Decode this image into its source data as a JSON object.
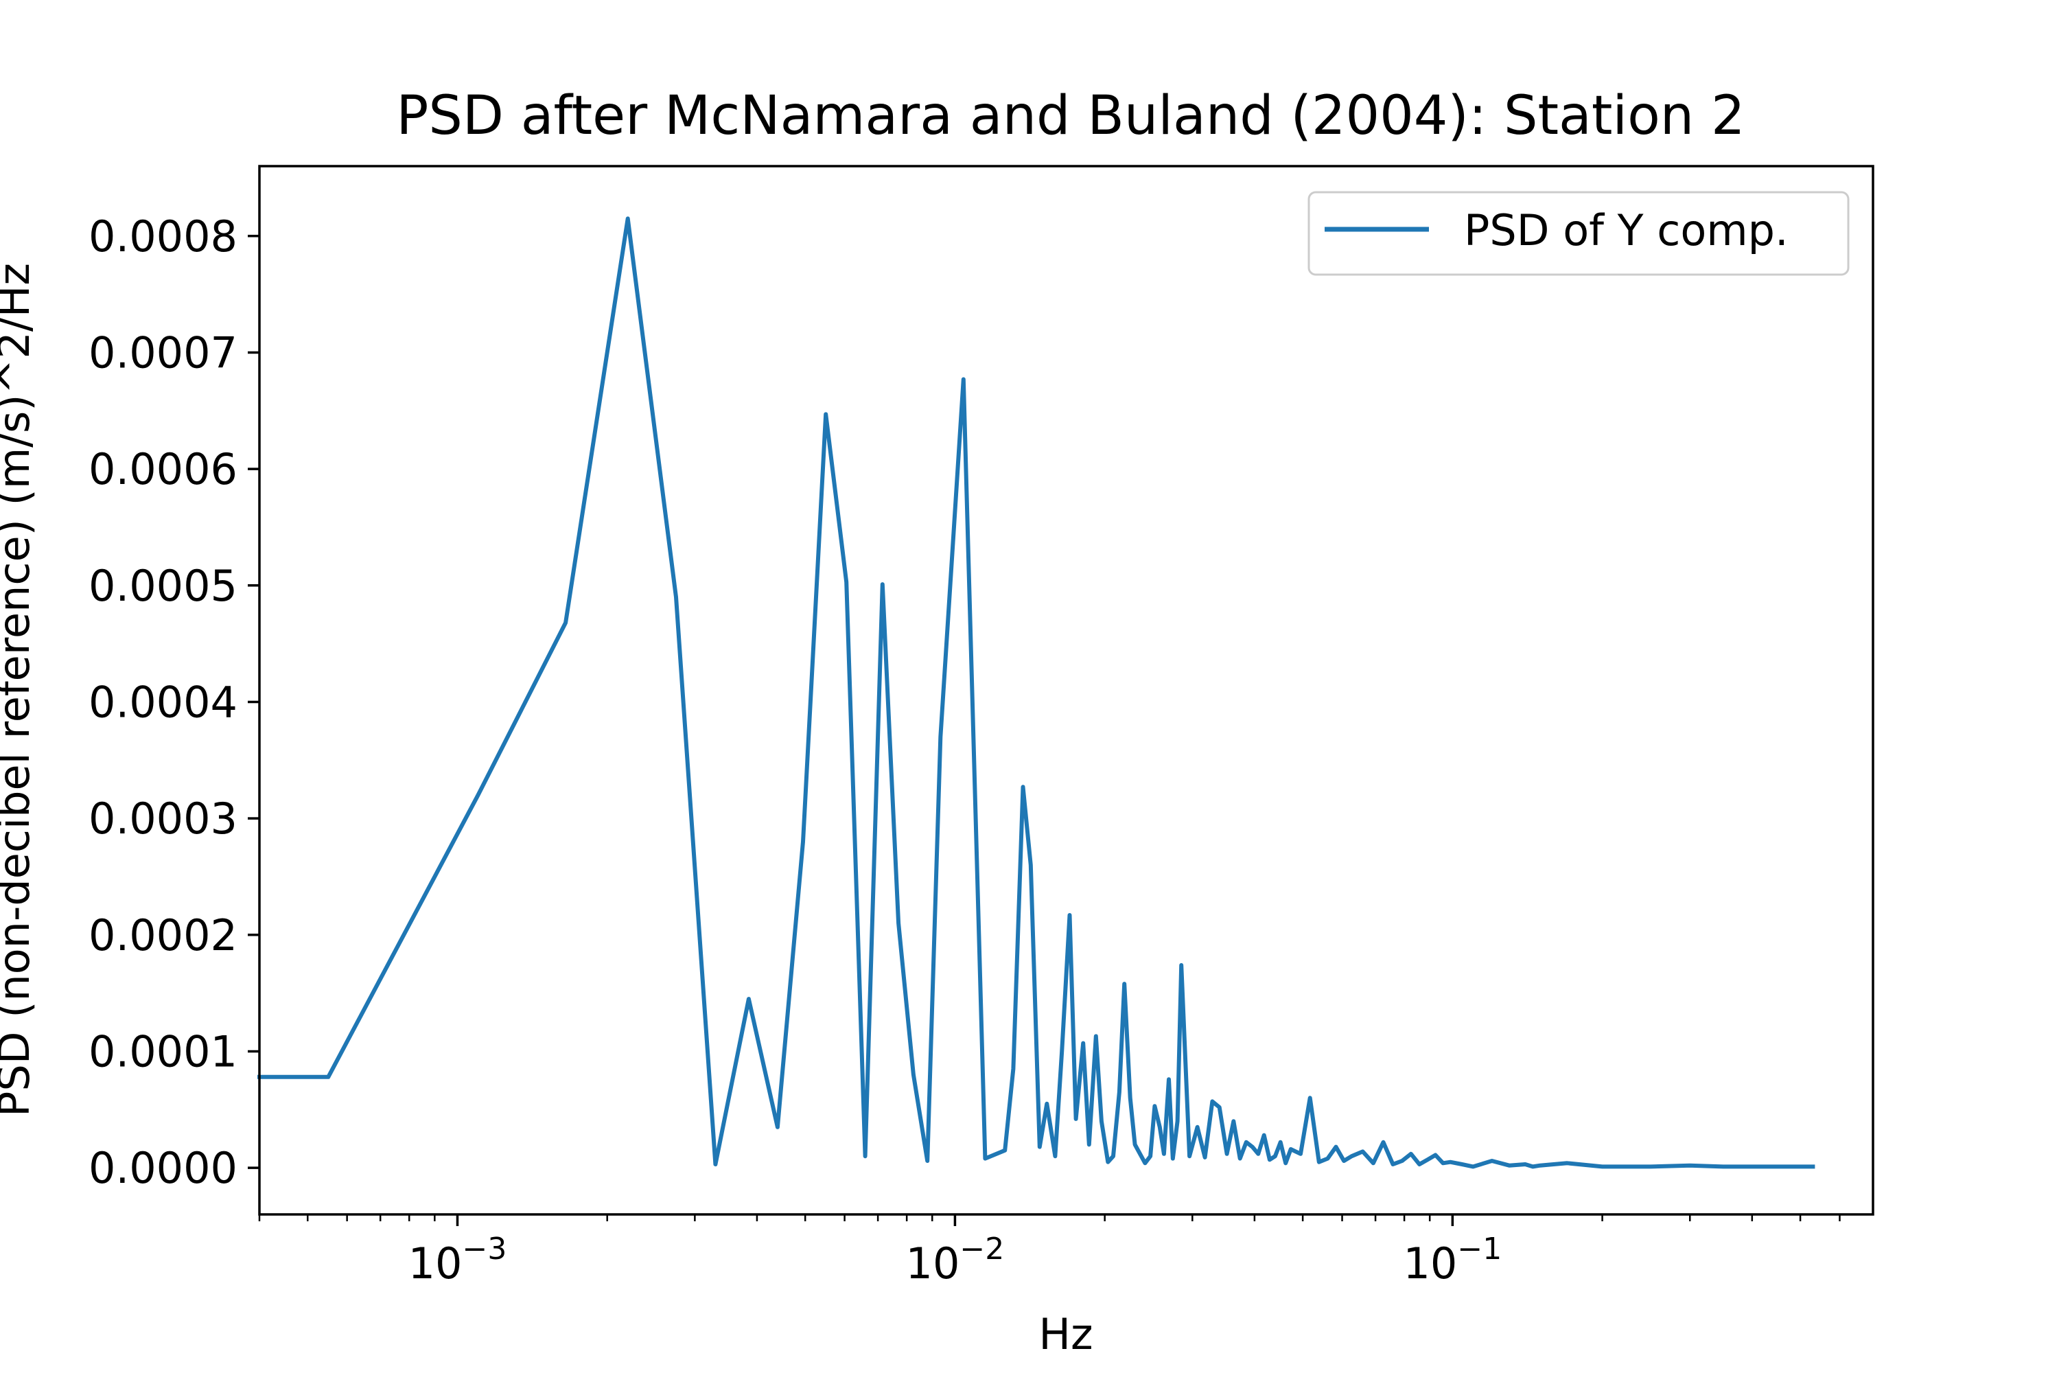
{
  "chart_data": {
    "type": "line",
    "title": "PSD after McNamara and Buland (2004): Station 2",
    "xlabel": "Hz",
    "ylabel": "PSD (non-decibel reference) (m/s)^2/Hz",
    "xscale": "log",
    "xlim": [
      0.0004,
      0.7
    ],
    "ylim": [
      -4e-05,
      0.00086
    ],
    "x_ticks": [
      {
        "value": 0.001,
        "base": "10",
        "exp": "−3"
      },
      {
        "value": 0.01,
        "base": "10",
        "exp": "−2"
      },
      {
        "value": 0.1,
        "base": "10",
        "exp": "−1"
      }
    ],
    "y_ticks": [
      {
        "value": 0.0,
        "label": "0.0000"
      },
      {
        "value": 0.0001,
        "label": "0.0001"
      },
      {
        "value": 0.0002,
        "label": "0.0002"
      },
      {
        "value": 0.0003,
        "label": "0.0003"
      },
      {
        "value": 0.0004,
        "label": "0.0004"
      },
      {
        "value": 0.0005,
        "label": "0.0005"
      },
      {
        "value": 0.0006,
        "label": "0.0006"
      },
      {
        "value": 0.0007,
        "label": "0.0007"
      },
      {
        "value": 0.0008,
        "label": "0.0008"
      }
    ],
    "legend": {
      "position": "top-right",
      "entries": [
        "PSD of Y comp."
      ]
    },
    "series": [
      {
        "name": "PSD of Y comp.",
        "color": "#1f77b4",
        "x": [
          0.0004,
          0.00055,
          0.0011,
          0.00165,
          0.0022,
          0.00275,
          0.0033,
          0.00385,
          0.0044,
          0.00495,
          0.0055,
          0.00605,
          0.0066,
          0.00715,
          0.0077,
          0.00825,
          0.0088,
          0.00935,
          0.0104,
          0.0115,
          0.0126,
          0.0131,
          0.0137,
          0.0142,
          0.0148,
          0.0153,
          0.0159,
          0.0164,
          0.017,
          0.0175,
          0.0181,
          0.0186,
          0.0192,
          0.0197,
          0.0203,
          0.0208,
          0.0214,
          0.0219,
          0.0225,
          0.023,
          0.0241,
          0.0247,
          0.0252,
          0.0258,
          0.0263,
          0.0269,
          0.0274,
          0.028,
          0.0285,
          0.0296,
          0.0307,
          0.0318,
          0.0329,
          0.034,
          0.0352,
          0.0363,
          0.0374,
          0.0385,
          0.0396,
          0.0407,
          0.0418,
          0.0429,
          0.044,
          0.0451,
          0.0462,
          0.0473,
          0.0495,
          0.0517,
          0.0539,
          0.0561,
          0.0583,
          0.0605,
          0.0627,
          0.066,
          0.0693,
          0.0726,
          0.0759,
          0.0792,
          0.0825,
          0.0858,
          0.0891,
          0.0924,
          0.0957,
          0.099,
          0.1045,
          0.11,
          0.12,
          0.13,
          0.14,
          0.145,
          0.15,
          0.17,
          0.2,
          0.25,
          0.3,
          0.35,
          0.4,
          0.45,
          0.5,
          0.53
        ],
        "y": [
          7.8e-05,
          7.8e-05,
          0.00032,
          0.000468,
          0.000815,
          0.00049,
          3e-06,
          0.000145,
          3.5e-05,
          0.00028,
          0.000647,
          0.000503,
          1e-05,
          0.000501,
          0.00021,
          8e-05,
          6e-06,
          0.00037,
          0.000677,
          8e-06,
          1.5e-05,
          8.5e-05,
          0.000327,
          0.00026,
          1.8e-05,
          5.5e-05,
          1e-05,
          0.0001,
          0.000217,
          4.2e-05,
          0.000107,
          2e-05,
          0.000113,
          4e-05,
          5e-06,
          1e-05,
          6.5e-05,
          0.000158,
          6e-05,
          2e-05,
          4e-06,
          1e-05,
          5.3e-05,
          3.5e-05,
          1.2e-05,
          7.6e-05,
          8e-06,
          4e-05,
          0.000174,
          1e-05,
          3.5e-05,
          9e-06,
          5.7e-05,
          5.2e-05,
          1.2e-05,
          4e-05,
          8e-06,
          2.2e-05,
          1.8e-05,
          1.2e-05,
          2.8e-05,
          7e-06,
          1e-05,
          2.2e-05,
          4e-06,
          1.6e-05,
          1.2e-05,
          6e-05,
          5e-06,
          8e-06,
          1.8e-05,
          6e-06,
          1e-05,
          1.4e-05,
          4e-06,
          2.2e-05,
          3e-06,
          6e-06,
          1.2e-05,
          3e-06,
          7e-06,
          1.1e-05,
          4e-06,
          5e-06,
          3e-06,
          1e-06,
          6e-06,
          2e-06,
          3e-06,
          1e-06,
          2e-06,
          4e-06,
          1e-06,
          1e-06,
          2e-06,
          1e-06,
          1e-06,
          1e-06,
          1e-06,
          1e-06
        ]
      }
    ]
  }
}
